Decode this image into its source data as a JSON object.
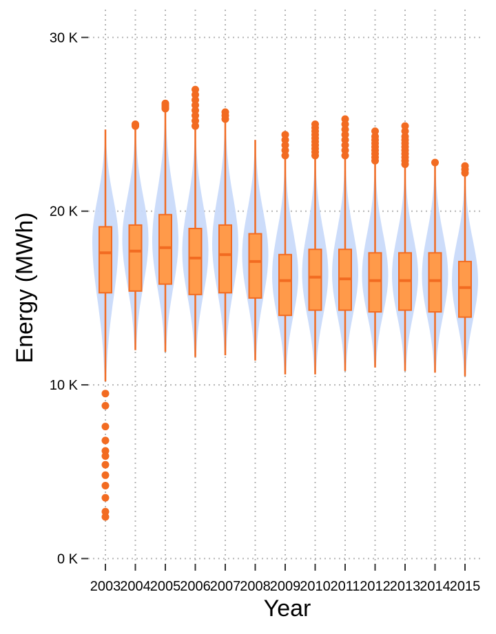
{
  "chart_data": {
    "type": "violin-box",
    "xlabel": "Year",
    "ylabel": "Energy (MWh)",
    "categories": [
      "2003",
      "2004",
      "2005",
      "2006",
      "2007",
      "2008",
      "2009",
      "2010",
      "2011",
      "2012",
      "2013",
      "2014",
      "2015"
    ],
    "y_ticks": [
      {
        "value": 0,
        "label": "0 K"
      },
      {
        "value": 10000,
        "label": "10 K"
      },
      {
        "value": 20000,
        "label": "20 K"
      },
      {
        "value": 30000,
        "label": "30 K"
      }
    ],
    "ylim": [
      -300,
      31600
    ],
    "grid": true,
    "colors": {
      "violin": "#c9dafa",
      "box_fill": "#ff9a4a",
      "box_stroke": "#f26b21",
      "grid": "#b3b3b3"
    },
    "boxes": [
      {
        "year": "2003",
        "q1": 15300,
        "median": 17600,
        "q3": 19100,
        "whisker_low": 10200,
        "whisker_high": 24700,
        "violin_min": 10200,
        "violin_max": 24700,
        "violin_mode": 18300,
        "outliers": [
          9500,
          8800,
          7600,
          6800,
          6200,
          5900,
          5400,
          4800,
          4200,
          3500,
          2700,
          2400
        ]
      },
      {
        "year": "2004",
        "q1": 15400,
        "median": 17700,
        "q3": 19200,
        "whisker_low": 12000,
        "whisker_high": 24800,
        "violin_min": 12000,
        "violin_max": 24800,
        "violin_mode": 18400,
        "outliers": [
          24900,
          25000
        ]
      },
      {
        "year": "2005",
        "q1": 15800,
        "median": 17900,
        "q3": 19800,
        "whisker_low": 11900,
        "whisker_high": 25800,
        "violin_min": 11900,
        "violin_max": 25800,
        "violin_mode": 18300,
        "outliers": [
          25900,
          26000,
          26100,
          26200
        ]
      },
      {
        "year": "2006",
        "q1": 15200,
        "median": 17300,
        "q3": 19000,
        "whisker_low": 11600,
        "whisker_high": 24700,
        "violin_min": 11600,
        "violin_max": 24700,
        "violin_mode": 17700,
        "outliers": [
          24900,
          25200,
          25500,
          25800,
          26100,
          26400,
          26700,
          27000
        ]
      },
      {
        "year": "2007",
        "q1": 15300,
        "median": 17500,
        "q3": 19200,
        "whisker_low": 11700,
        "whisker_high": 25200,
        "violin_min": 11700,
        "violin_max": 25200,
        "violin_mode": 18100,
        "outliers": [
          25300,
          25500,
          25700
        ]
      },
      {
        "year": "2008",
        "q1": 15000,
        "median": 17100,
        "q3": 18700,
        "whisker_low": 11400,
        "whisker_high": 24100,
        "violin_min": 11400,
        "violin_max": 24100,
        "violin_mode": 17500,
        "outliers": []
      },
      {
        "year": "2009",
        "q1": 14000,
        "median": 16000,
        "q3": 17500,
        "whisker_low": 10600,
        "whisker_high": 23000,
        "violin_min": 10600,
        "violin_max": 23000,
        "violin_mode": 16300,
        "outliers": [
          23200,
          23500,
          23800,
          24100,
          24400
        ]
      },
      {
        "year": "2010",
        "q1": 14300,
        "median": 16200,
        "q3": 17800,
        "whisker_low": 10600,
        "whisker_high": 23100,
        "violin_min": 10600,
        "violin_max": 23100,
        "violin_mode": 16400,
        "outliers": [
          23200,
          23400,
          23600,
          23800,
          24000,
          24200,
          24400,
          24600,
          24800,
          25000
        ]
      },
      {
        "year": "2011",
        "q1": 14300,
        "median": 16100,
        "q3": 17800,
        "whisker_low": 10800,
        "whisker_high": 23000,
        "violin_min": 10800,
        "violin_max": 23000,
        "violin_mode": 16400,
        "outliers": [
          23200,
          23500,
          23800,
          24100,
          24400,
          24700,
          25000,
          25300
        ]
      },
      {
        "year": "2012",
        "q1": 14200,
        "median": 16000,
        "q3": 17600,
        "whisker_low": 11000,
        "whisker_high": 22700,
        "violin_min": 11000,
        "violin_max": 22700,
        "violin_mode": 16300,
        "outliers": [
          22900,
          23100,
          23300,
          23500,
          23700,
          23900,
          24100,
          24300,
          24600
        ]
      },
      {
        "year": "2013",
        "q1": 14300,
        "median": 16000,
        "q3": 17600,
        "whisker_low": 10800,
        "whisker_high": 22500,
        "violin_min": 10800,
        "violin_max": 22500,
        "violin_mode": 16300,
        "outliers": [
          22700,
          22900,
          23100,
          23300,
          23500,
          23700,
          23900,
          24100,
          24300,
          24600,
          24900
        ]
      },
      {
        "year": "2014",
        "q1": 14200,
        "median": 16000,
        "q3": 17600,
        "whisker_low": 10700,
        "whisker_high": 22700,
        "violin_min": 10700,
        "violin_max": 22700,
        "violin_mode": 16300,
        "outliers": [
          22800
        ]
      },
      {
        "year": "2015",
        "q1": 13900,
        "median": 15600,
        "q3": 17100,
        "whisker_low": 10500,
        "whisker_high": 22100,
        "violin_min": 10500,
        "violin_max": 22100,
        "violin_mode": 16000,
        "outliers": [
          22200,
          22400,
          22600
        ]
      }
    ]
  }
}
